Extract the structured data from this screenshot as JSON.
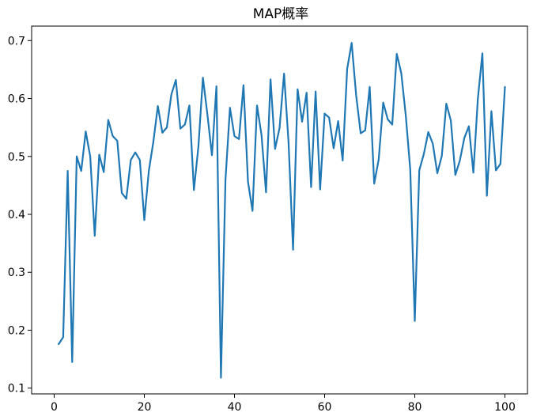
{
  "chart_data": {
    "type": "line",
    "title": "MAP概率",
    "xlabel": "",
    "ylabel": "",
    "xlim": [
      -5,
      105
    ],
    "ylim": [
      0.09,
      0.725
    ],
    "xticks": [
      0,
      20,
      40,
      60,
      80,
      100
    ],
    "yticks": [
      0.1,
      0.2,
      0.3,
      0.4,
      0.5,
      0.6,
      0.7
    ],
    "grid": false,
    "legend": "none",
    "line_color": "#1f77b4",
    "series": [
      {
        "x": [
          1,
          2,
          3,
          4,
          5,
          6,
          7,
          8,
          9,
          10,
          11,
          12,
          13,
          14,
          15,
          16,
          17,
          18,
          19,
          20,
          21,
          22,
          23,
          24,
          25,
          26,
          27,
          28,
          29,
          30,
          31,
          32,
          33,
          34,
          35,
          36,
          37,
          38,
          39,
          40,
          41,
          42,
          43,
          44,
          45,
          46,
          47,
          48,
          49,
          50,
          51,
          52,
          53,
          54,
          55,
          56,
          57,
          58,
          59,
          60,
          61,
          62,
          63,
          64,
          65,
          66,
          67,
          68,
          69,
          70,
          71,
          72,
          73,
          74,
          75,
          76,
          77,
          78,
          79,
          80,
          81,
          82,
          83,
          84,
          85,
          86,
          87,
          88,
          89,
          90,
          91,
          92,
          93,
          94,
          95,
          96,
          97,
          98,
          99,
          100
        ],
        "values": [
          0.176,
          0.188,
          0.475,
          0.145,
          0.5,
          0.475,
          0.543,
          0.5,
          0.363,
          0.503,
          0.473,
          0.563,
          0.535,
          0.527,
          0.437,
          0.427,
          0.494,
          0.507,
          0.494,
          0.39,
          0.475,
          0.525,
          0.587,
          0.541,
          0.55,
          0.607,
          0.632,
          0.548,
          0.555,
          0.588,
          0.442,
          0.517,
          0.636,
          0.572,
          0.502,
          0.621,
          0.118,
          0.459,
          0.584,
          0.535,
          0.53,
          0.623,
          0.456,
          0.406,
          0.588,
          0.537,
          0.438,
          0.633,
          0.513,
          0.549,
          0.643,
          0.524,
          0.339,
          0.616,
          0.56,
          0.61,
          0.447,
          0.612,
          0.443,
          0.574,
          0.567,
          0.514,
          0.561,
          0.493,
          0.651,
          0.696,
          0.605,
          0.54,
          0.545,
          0.62,
          0.453,
          0.495,
          0.593,
          0.564,
          0.555,
          0.677,
          0.644,
          0.571,
          0.477,
          0.216,
          0.476,
          0.504,
          0.542,
          0.522,
          0.471,
          0.501,
          0.591,
          0.562,
          0.468,
          0.493,
          0.532,
          0.552,
          0.472,
          0.6,
          0.678,
          0.432,
          0.578,
          0.476,
          0.487,
          0.62
        ]
      }
    ]
  }
}
